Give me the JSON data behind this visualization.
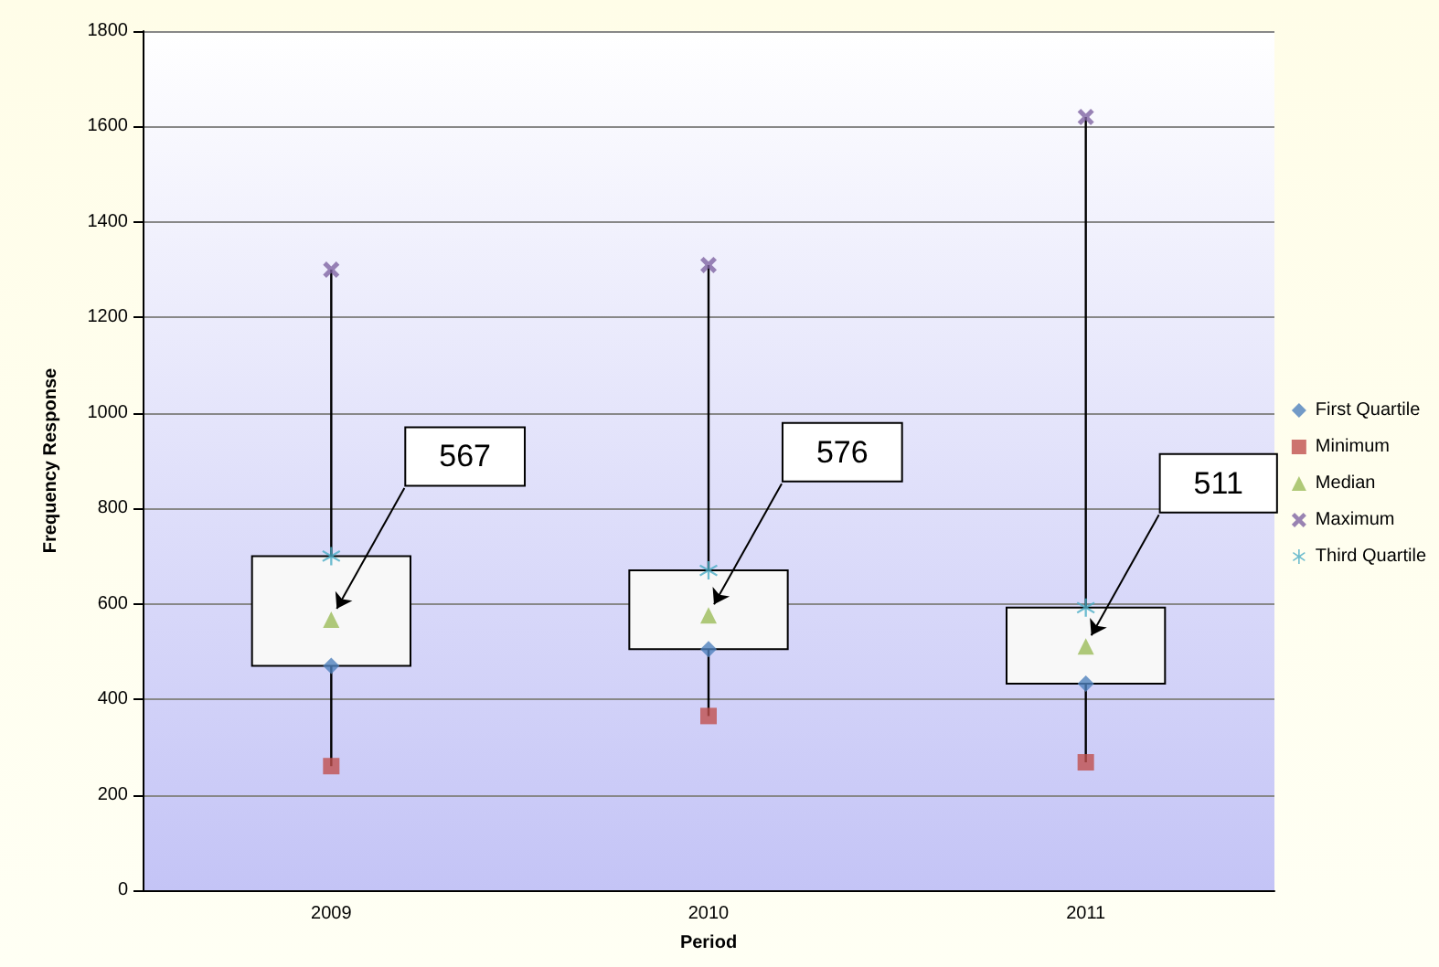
{
  "chart_data": {
    "type": "box",
    "xlabel": "Period",
    "ylabel": "Frequency Response",
    "categories": [
      "2009",
      "2010",
      "2011"
    ],
    "boxes": [
      {
        "low": 260,
        "q1": 470,
        "q3": 700,
        "high": 1300
      },
      {
        "low": 365,
        "q1": 505,
        "q3": 670,
        "high": 1310
      },
      {
        "low": 268,
        "q1": 433,
        "q3": 592,
        "high": 1620
      }
    ],
    "series": [
      {
        "type": "scatter",
        "name": "First Quartile",
        "color": "#4f81bd",
        "marker": "diamond",
        "values": [
          470,
          505,
          433
        ]
      },
      {
        "type": "scatter",
        "name": "Minimum",
        "color": "#c0504d",
        "marker": "square",
        "values": [
          260,
          365,
          268
        ]
      },
      {
        "type": "scatter",
        "name": "Median",
        "color": "#9bbb59",
        "marker": "triangle",
        "values": [
          567,
          576,
          511
        ]
      },
      {
        "type": "scatter",
        "name": "Maximum",
        "color": "#8064a2",
        "marker": "cross",
        "values": [
          1300,
          1310,
          1620
        ]
      },
      {
        "type": "scatter",
        "name": "Third Quartile",
        "color": "#4bacc6",
        "marker": "star",
        "values": [
          700,
          670,
          592
        ]
      }
    ],
    "annotations": [
      {
        "text": "567",
        "x": "2009",
        "y": 567
      },
      {
        "text": "576",
        "x": "2010",
        "y": 576
      },
      {
        "text": "511",
        "x": "2011",
        "y": 511
      }
    ],
    "ylim": [
      0,
      1800
    ],
    "yticks": [
      0,
      200,
      400,
      600,
      800,
      1000,
      1200,
      1400,
      1600,
      1800
    ],
    "grid": "y",
    "legend": "right"
  }
}
